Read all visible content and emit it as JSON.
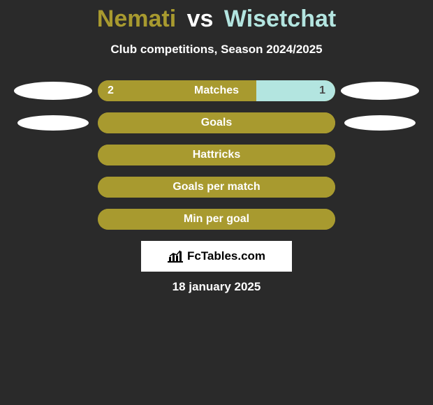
{
  "title": {
    "player1": "Nemati",
    "vs": "vs",
    "player2": "Wisetchat",
    "color_player1": "#a89a2f",
    "color_player2": "#b3e5e0"
  },
  "subtitle": "Club competitions, Season 2024/2025",
  "stats": [
    {
      "label": "Matches",
      "left_value": "2",
      "right_value": "1",
      "left_pct": 66.7,
      "right_pct": 33.3,
      "show_values": true,
      "show_ellipses": true,
      "ellipse": "lg"
    },
    {
      "label": "Goals",
      "left_value": "",
      "right_value": "",
      "left_pct": 100,
      "right_pct": 0,
      "show_values": false,
      "show_ellipses": true,
      "ellipse": "sm"
    },
    {
      "label": "Hattricks",
      "left_value": "",
      "right_value": "",
      "left_pct": 100,
      "right_pct": 0,
      "show_values": false,
      "show_ellipses": false
    },
    {
      "label": "Goals per match",
      "left_value": "",
      "right_value": "",
      "left_pct": 100,
      "right_pct": 0,
      "show_values": false,
      "show_ellipses": false
    },
    {
      "label": "Min per goal",
      "left_value": "",
      "right_value": "",
      "left_pct": 100,
      "right_pct": 0,
      "show_values": false,
      "show_ellipses": false
    }
  ],
  "colors": {
    "left_fill": "#a89a2f",
    "right_fill": "#b3e5e0",
    "bg": "#2a2a2a",
    "ellipse": "#ffffff",
    "logo_bg": "#ffffff"
  },
  "branding": {
    "text": "FcTables.com"
  },
  "date": "18 january 2025"
}
